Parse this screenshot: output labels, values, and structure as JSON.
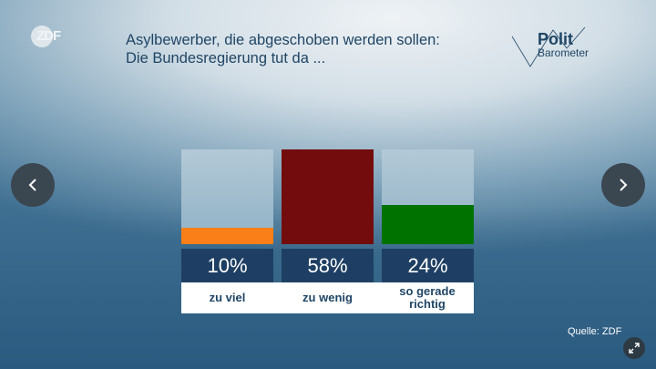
{
  "brand": {
    "logo": "ZDF",
    "politbarometer_line1": "Polit",
    "politbarometer_line2": "Barometer"
  },
  "title_line1": "Asylbewerber, die abgeschoben werden sollen:",
  "title_line2": "Die Bundesregierung tut da ...",
  "source": "Quelle: ZDF",
  "nav": {
    "prev": "chevron-left-icon",
    "next": "chevron-right-icon",
    "expand": "expand-icon"
  },
  "chart_data": {
    "type": "bar",
    "title": "Asylbewerber, die abgeschoben werden sollen: Die Bundesregierung tut da ...",
    "categories": [
      "zu viel",
      "zu wenig",
      "so gerade richtig"
    ],
    "values": [
      10,
      58,
      24
    ],
    "value_labels": [
      "10%",
      "58%",
      "24%"
    ],
    "colors": [
      "#fb7f18",
      "#730d0d",
      "#007200"
    ],
    "ylim": [
      0,
      58
    ],
    "xlabel": "",
    "ylabel": ""
  }
}
